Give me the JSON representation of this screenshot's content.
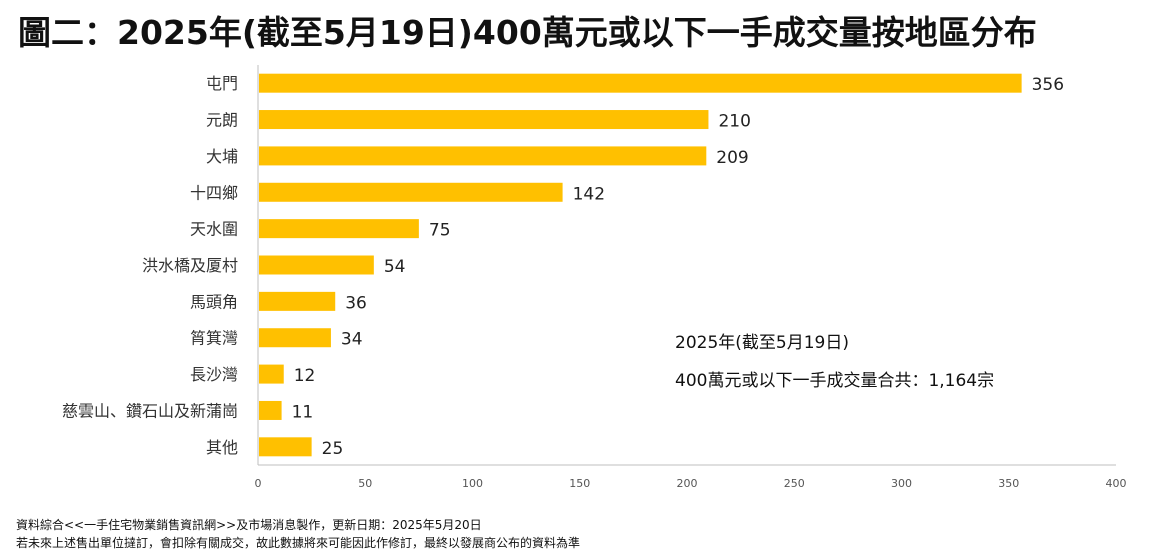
{
  "title": "圖二：2025年(截至5月19日)400萬元或以下一手成交量按地區分布",
  "chart_data": {
    "type": "bar",
    "orientation": "horizontal",
    "categories": [
      "屯門",
      "元朗",
      "大埔",
      "十四鄉",
      "天水圍",
      "洪水橋及厦村",
      "馬頭角",
      "筲箕灣",
      "長沙灣",
      "慈雲山、鑽石山及新蒲崗",
      "其他"
    ],
    "values": [
      356,
      210,
      209,
      142,
      75,
      54,
      36,
      34,
      12,
      11,
      25
    ],
    "xlim": [
      0,
      400
    ],
    "xticks": [
      0,
      50,
      100,
      150,
      200,
      250,
      300,
      350,
      400
    ],
    "bar_color": "#FFC000",
    "grid": false
  },
  "annotation": {
    "line1": "2025年(截至5月19日)",
    "line2": "400萬元或以下一手成交量合共：1,164宗"
  },
  "footer": {
    "line1": "資料綜合<<一手住宅物業銷售資訊網>>及市場消息製作，更新日期：2025年5月20日",
    "line2": "若未來上述售出單位撻訂，會扣除有關成交，故此數據將來可能因此作修訂，最終以發展商公布的資料為準"
  }
}
